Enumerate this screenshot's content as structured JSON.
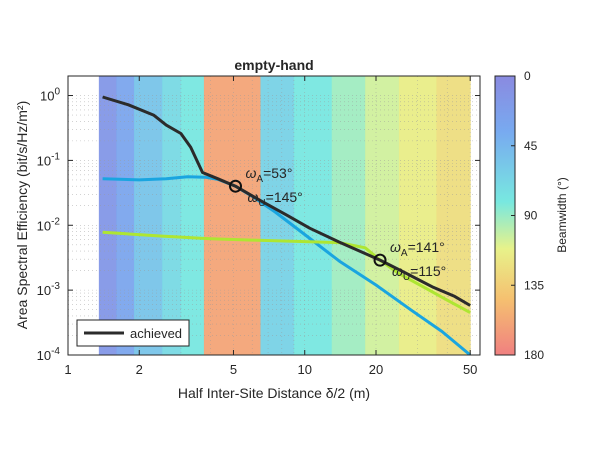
{
  "chart_data": {
    "type": "line",
    "title": "empty-hand",
    "xlabel": "Half Inter-Site Distance δ/2 (m)",
    "ylabel": "Area Spectral Efficiency (bit/s/Hz/m²)",
    "xscale": "log",
    "yscale": "log",
    "xlim": [
      1,
      55
    ],
    "ylim": [
      0.0001,
      2
    ],
    "xticks": [
      {
        "v": 1,
        "label": "1"
      },
      {
        "v": 2,
        "label": "2"
      },
      {
        "v": 5,
        "label": "5"
      },
      {
        "v": 10,
        "label": "10"
      },
      {
        "v": 20,
        "label": "20"
      },
      {
        "v": 50,
        "label": "50"
      }
    ],
    "yticks": [
      {
        "v": 1,
        "base": "10",
        "exp": "0"
      },
      {
        "v": 0.1,
        "base": "10",
        "exp": "-1"
      },
      {
        "v": 0.01,
        "base": "10",
        "exp": "-2"
      },
      {
        "v": 0.001,
        "base": "10",
        "exp": "-3"
      },
      {
        "v": 0.0001,
        "base": "10",
        "exp": "-4"
      }
    ],
    "grid": true,
    "legend_position": "bottom-left",
    "series": [
      {
        "name": "achieved",
        "color": "#2b2b2b",
        "points": [
          [
            1.4,
            0.95
          ],
          [
            1.8,
            0.72
          ],
          [
            2.3,
            0.5
          ],
          [
            2.6,
            0.35
          ],
          [
            3.0,
            0.26
          ],
          [
            3.3,
            0.16
          ],
          [
            3.7,
            0.065
          ],
          [
            4.3,
            0.052
          ],
          [
            5.1,
            0.04
          ],
          [
            6.5,
            0.024
          ],
          [
            8.5,
            0.014
          ],
          [
            10.5,
            0.009
          ],
          [
            14,
            0.0055
          ],
          [
            20.8,
            0.0029
          ],
          [
            27,
            0.0018
          ],
          [
            35,
            0.0011
          ],
          [
            43,
            0.0008
          ],
          [
            50,
            0.00058
          ]
        ]
      },
      {
        "color": "#1aa5e0",
        "points": [
          [
            1.4,
            0.052
          ],
          [
            2.0,
            0.05
          ],
          [
            2.6,
            0.052
          ],
          [
            3.2,
            0.056
          ],
          [
            3.8,
            0.055
          ],
          [
            4.3,
            0.051
          ],
          [
            5.1,
            0.04
          ],
          [
            6.0,
            0.028
          ],
          [
            7.5,
            0.016
          ],
          [
            10,
            0.0072
          ],
          [
            14,
            0.0028
          ],
          [
            20,
            0.0012
          ],
          [
            28,
            0.0005
          ],
          [
            38,
            0.00023
          ],
          [
            50,
            0.0001
          ]
        ]
      },
      {
        "color": "#aee632",
        "points": [
          [
            1.4,
            0.0078
          ],
          [
            2.5,
            0.0068
          ],
          [
            4,
            0.0062
          ],
          [
            6,
            0.0059
          ],
          [
            10,
            0.0056
          ],
          [
            14,
            0.0054
          ],
          [
            18,
            0.0045
          ],
          [
            20.8,
            0.0029
          ],
          [
            25,
            0.0018
          ],
          [
            32,
            0.0011
          ],
          [
            40,
            0.0007
          ],
          [
            50,
            0.00045
          ]
        ]
      }
    ],
    "annotations": [
      {
        "x": 5.1,
        "y": 0.04,
        "line1_sym": "ω",
        "line1_sub": "A",
        "line1_val": "=53°",
        "line2_sym": "ω",
        "line2_sub": "U",
        "line2_val": "=145°"
      },
      {
        "x": 20.8,
        "y": 0.0029,
        "line1_sym": "ω",
        "line1_sub": "A",
        "line1_val": "=141°",
        "line2_sym": "ω",
        "line2_sub": "U",
        "line2_val": "=115°"
      }
    ],
    "background_beamwidth": {
      "comment_units": "degrees; x in metres",
      "bands": [
        {
          "x0": 1.35,
          "x1": 1.6,
          "bw": 15
        },
        {
          "x0": 1.6,
          "x1": 1.9,
          "bw": 30
        },
        {
          "x0": 1.9,
          "x1": 2.5,
          "bw": 55
        },
        {
          "x0": 2.5,
          "x1": 3.0,
          "bw": 70
        },
        {
          "x0": 3.0,
          "x1": 3.75,
          "bw": 80
        },
        {
          "x0": 3.75,
          "x1": 6.5,
          "bw": 160
        },
        {
          "x0": 6.5,
          "x1": 9,
          "bw": 65
        },
        {
          "x0": 9,
          "x1": 13,
          "bw": 80
        },
        {
          "x0": 13,
          "x1": 18,
          "bw": 92
        },
        {
          "x0": 18,
          "x1": 25,
          "bw": 105
        },
        {
          "x0": 25,
          "x1": 36,
          "bw": 115
        },
        {
          "x0": 36,
          "x1": 50,
          "bw": 125
        }
      ]
    },
    "colorbar": {
      "label": "Beamwidth (°)",
      "min": 0,
      "max": 180,
      "ticks": [
        "0",
        "45",
        "90",
        "135",
        "180"
      ],
      "colors": [
        "#8585e0",
        "#75b6f5",
        "#72e8e0",
        "#e2f08c",
        "#f5d075",
        "#f28585"
      ]
    }
  }
}
